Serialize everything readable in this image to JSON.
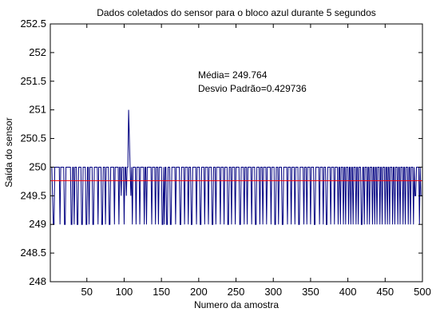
{
  "chart_data": {
    "type": "line",
    "title": "Dados coletados do sensor para o bloco azul durante 5 segundos",
    "xlabel": "Numero da amostra",
    "ylabel": "Saída do sensor",
    "xlim": [
      1,
      500
    ],
    "ylim": [
      248,
      252.5
    ],
    "x_ticks": [
      50,
      100,
      150,
      200,
      250,
      300,
      350,
      400,
      450,
      500
    ],
    "y_ticks": [
      248,
      248.5,
      249,
      249.5,
      250,
      250.5,
      251,
      251.5,
      252,
      252.5
    ],
    "grid": false,
    "annotations": [
      "Média= 249.764",
      "Desvio Padrão=0.429736"
    ],
    "mean": 249.764,
    "series": [
      {
        "color": "#000080",
        "values": [
          250,
          250,
          250,
          249.5,
          249,
          249,
          250,
          250,
          250,
          250,
          250,
          250,
          250,
          249,
          250,
          250,
          250,
          250,
          250,
          249,
          249,
          250,
          250,
          250,
          250,
          250,
          250,
          250,
          249,
          249,
          250,
          250,
          249,
          250,
          250,
          250,
          249,
          249,
          250,
          250,
          250,
          250,
          249,
          249,
          250,
          250,
          250,
          250,
          249,
          249,
          250,
          250,
          249,
          250,
          250,
          250,
          250,
          249,
          249,
          250,
          250,
          250,
          250,
          250,
          249,
          250,
          250,
          250,
          250,
          249,
          249,
          250,
          250,
          250,
          249,
          250,
          250,
          250,
          250,
          249,
          249,
          250,
          250,
          250,
          250,
          250,
          249,
          250,
          250,
          250,
          250,
          250,
          249,
          250,
          250,
          249.5,
          250,
          250,
          250,
          249,
          250,
          250,
          249.5,
          250,
          250,
          251,
          250.5,
          250,
          249.5,
          250,
          249,
          250,
          250,
          250,
          250,
          249,
          250,
          250,
          250,
          250,
          249,
          250,
          250,
          250,
          250,
          250,
          249,
          250,
          250,
          249,
          250,
          250,
          250,
          250,
          250,
          250,
          249,
          250,
          250,
          250,
          250,
          249,
          250,
          250,
          250,
          249,
          250,
          250,
          250,
          250,
          249,
          249,
          250,
          249,
          250,
          250,
          249,
          249,
          250,
          250,
          250,
          249,
          249,
          250,
          250,
          250,
          250,
          250,
          249,
          250,
          250,
          250,
          250,
          250,
          249,
          249,
          250,
          250,
          250,
          250,
          249,
          250,
          250,
          250,
          250,
          249,
          250,
          250,
          250,
          249,
          249,
          250,
          250,
          250,
          250,
          250,
          249,
          250,
          250,
          250,
          250,
          249,
          249,
          250,
          250,
          250,
          250,
          249,
          250,
          250,
          250,
          250,
          249,
          250,
          250,
          250,
          250,
          249,
          249,
          250,
          250,
          250,
          249,
          250,
          250,
          250,
          250,
          250,
          249,
          250,
          250,
          250,
          250,
          249,
          250,
          250,
          250,
          250,
          249,
          249,
          250,
          250,
          250,
          249,
          250,
          250,
          250,
          250,
          249,
          250,
          250,
          250,
          250,
          250,
          249,
          249,
          250,
          250,
          250,
          250,
          249,
          250,
          250,
          250,
          249,
          250,
          250,
          250,
          250,
          250,
          249,
          250,
          250,
          250,
          250,
          249,
          249,
          250,
          250,
          250,
          250,
          249,
          250,
          250,
          250,
          249,
          250,
          250,
          250,
          250,
          249,
          250,
          250,
          250,
          250,
          250,
          249,
          250,
          250,
          250,
          250,
          249,
          249,
          250,
          250,
          250,
          249,
          250,
          250,
          250,
          250,
          249,
          249,
          250,
          250,
          250,
          250,
          250,
          249,
          250,
          250,
          250,
          250,
          249,
          250,
          250,
          250,
          250,
          249,
          250,
          250,
          250,
          250,
          249,
          249,
          250,
          250,
          250,
          250,
          250,
          249,
          250,
          250,
          250,
          249,
          250,
          250,
          250,
          250,
          249,
          250,
          250,
          250,
          250,
          249,
          249,
          250,
          250,
          250,
          250,
          250,
          249,
          250,
          250,
          250,
          250,
          249,
          250,
          250,
          250,
          249,
          249,
          250,
          250,
          250,
          250,
          249,
          250,
          250,
          250,
          250,
          249,
          250,
          250,
          250,
          250,
          249,
          250,
          250,
          249,
          250,
          250,
          250,
          249,
          250,
          250,
          249,
          250,
          250,
          250,
          249,
          250,
          250,
          249,
          250,
          250,
          249,
          250,
          250,
          250,
          249,
          250,
          250,
          249,
          250,
          250,
          250,
          249,
          249,
          250,
          250,
          249,
          250,
          250,
          250,
          249,
          250,
          250,
          249,
          250,
          250,
          250,
          249,
          250,
          250,
          249,
          250,
          250,
          249,
          250,
          250,
          250,
          249,
          250,
          250,
          249,
          250,
          250,
          250,
          249,
          250,
          250,
          249,
          250,
          250,
          249,
          250,
          250,
          250,
          249,
          250,
          250,
          249,
          250,
          250,
          250,
          249,
          250,
          250,
          249,
          250,
          250,
          250,
          249,
          250,
          250,
          249,
          250,
          250,
          250,
          249,
          250,
          250,
          249,
          250,
          250,
          250,
          249,
          250,
          249.5,
          249.5,
          250,
          250,
          250,
          250,
          249,
          250,
          249.5,
          249.5,
          249.5
        ]
      },
      {
        "color": "#ff0000",
        "values": [
          249.764,
          249.764
        ]
      }
    ]
  }
}
